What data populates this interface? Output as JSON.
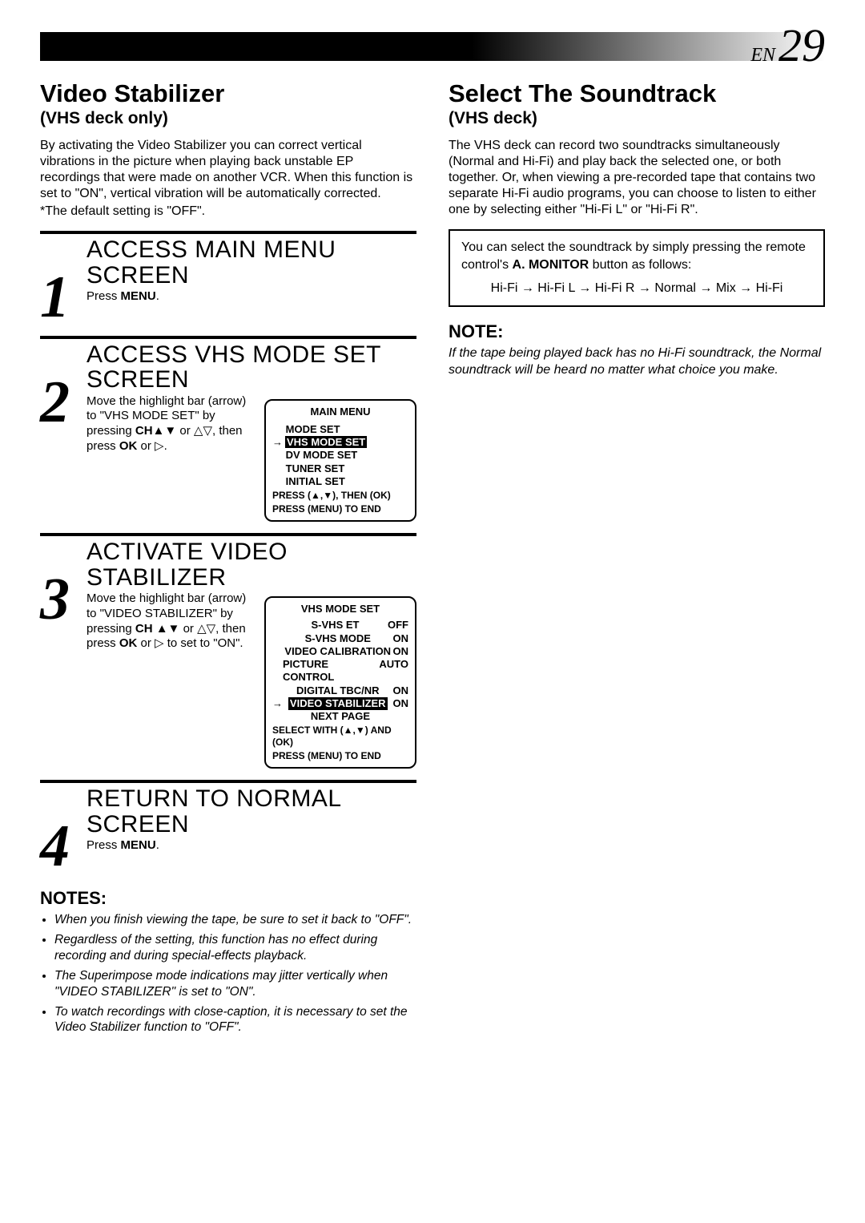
{
  "page": {
    "prefix": "EN",
    "number": "29"
  },
  "left": {
    "title": "Video Stabilizer",
    "subtitle": "(VHS deck only)",
    "intro": "By activating the Video Stabilizer you can correct vertical vibrations in the picture when playing back unstable EP recordings that were made on another VCR. When this function is set to \"ON\", vertical vibration will be automatically corrected.",
    "intro_note": "*The default setting is \"OFF\".",
    "steps": [
      {
        "num": "1",
        "title": "ACCESS MAIN MENU SCREEN",
        "text_html": "Press <b>MENU</b>."
      },
      {
        "num": "2",
        "title": "ACCESS VHS MODE SET SCREEN",
        "text_html": "Move the highlight bar (arrow) to \"VHS MODE SET\" by pressing <b>CH</b>▲▼ or △▽, then press <b>OK</b> or ▷.",
        "screen": {
          "title": "MAIN MENU",
          "items": [
            "MODE SET",
            "VHS MODE SET",
            "DV MODE SET",
            "TUNER SET",
            "INITIAL SET"
          ],
          "highlight": 1,
          "footer": [
            "PRESS (▲,▼), THEN (OK)",
            "PRESS (MENU) TO END"
          ]
        }
      },
      {
        "num": "3",
        "title": "ACTIVATE VIDEO STABILIZER",
        "text_html": "Move the highlight bar (arrow) to \"VIDEO STABILIZER\" by pressing <b>CH</b> ▲▼ or △▽, then press <b>OK</b> or ▷ to set to \"ON\".",
        "screen": {
          "title": "VHS MODE SET",
          "rows": [
            {
              "label": "S-VHS ET",
              "value": "OFF"
            },
            {
              "label": "S-VHS MODE",
              "value": "ON"
            },
            {
              "label": "VIDEO CALIBRATION",
              "value": "ON"
            },
            {
              "label": "PICTURE CONTROL",
              "value": "AUTO"
            },
            {
              "label": "DIGITAL TBC/NR",
              "value": "ON"
            },
            {
              "label": "VIDEO STABILIZER",
              "value": "ON"
            }
          ],
          "highlight": 5,
          "after": "NEXT PAGE",
          "footer": [
            "SELECT WITH (▲,▼) AND (OK)",
            "PRESS (MENU) TO END"
          ]
        }
      },
      {
        "num": "4",
        "title": "RETURN TO NORMAL SCREEN",
        "text_html": "Press <b>MENU</b>."
      }
    ],
    "notes_title": "NOTES:",
    "notes": [
      "When you finish viewing the tape, be sure to set it back to \"OFF\".",
      "Regardless of the setting, this function has no effect during recording and during special-effects playback.",
      "The Superimpose mode indications may jitter vertically when \"VIDEO STABILIZER\" is set to \"ON\".",
      "To watch recordings with close-caption, it is necessary to set the Video Stabilizer function to \"OFF\"."
    ]
  },
  "right": {
    "title": "Select The Soundtrack",
    "subtitle": "(VHS deck)",
    "intro": "The VHS deck can record two soundtracks simultaneously (Normal and Hi-Fi) and play back the selected one, or both together. Or, when viewing a pre-recorded tape that contains two separate Hi-Fi audio programs, you can choose to listen to either one by selecting either \"Hi-Fi L\" or \"Hi-Fi R\".",
    "box_html": "You can select the soundtrack by simply pressing the remote control's <b>A. MONITOR</b> button as follows:",
    "box_sequence": "Hi-Fi → Hi-Fi L → Hi-Fi R  → Normal → Mix → Hi-Fi",
    "note_title": "NOTE:",
    "note": "If the tape being played back has no Hi-Fi soundtrack, the Normal soundtrack will be heard no matter what choice you make."
  }
}
